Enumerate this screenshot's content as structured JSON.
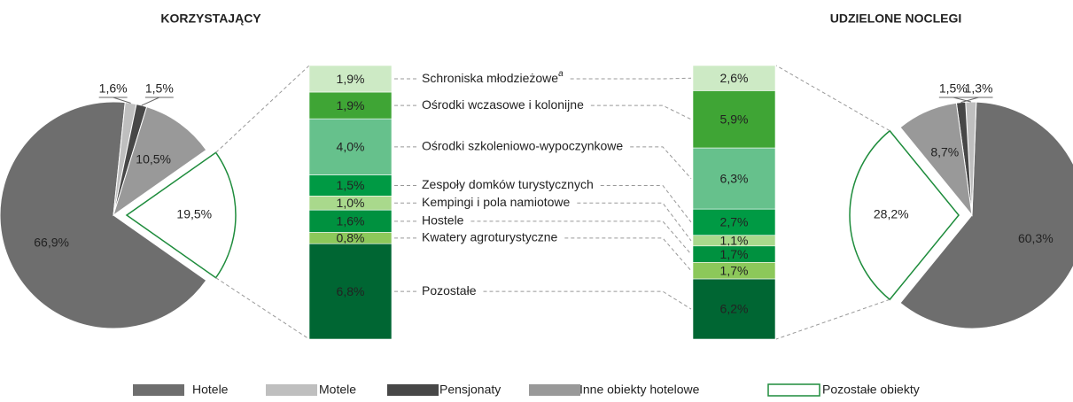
{
  "chart_data": {
    "type": "bar-of-pie",
    "legend": [
      "Hotele",
      "Motele",
      "Pensjonaty",
      "Inne obiekty hotelowe",
      "Pozostałe obiekty"
    ],
    "pie_colors": [
      "#6e6e6e",
      "#bfbfbf",
      "#474747",
      "#999999",
      "#ffffff"
    ],
    "outline_color": "#1e8c3c",
    "bar_categories": [
      "Schroniska młodzieżowe",
      "Ośrodki wczasowe i kolonijne",
      "Ośrodki szkoleniowo-wypoczynkowe",
      "Zespoły domków turystycznych",
      "Kempingi i pola namiotowe",
      "Hostele",
      "Kwatery agroturystyczne",
      "Pozostałe"
    ],
    "bar_category_notes": [
      "a",
      null,
      null,
      null,
      null,
      null,
      null,
      null
    ],
    "bar_colors": [
      "#cdeac5",
      "#3fa535",
      "#66c18c",
      "#009a44",
      "#a9d98c",
      "#00913f",
      "#8cc85a",
      "#006633"
    ],
    "panels": [
      {
        "title": "KORZYSTAJĄCY",
        "pie_values": [
          66.9,
          1.6,
          1.5,
          10.5,
          19.5
        ],
        "pie_labels": [
          "66,9%",
          "1,6%",
          "1,5%",
          "10,5%",
          "19,5%"
        ],
        "bar_values": [
          1.9,
          1.9,
          4.0,
          1.5,
          1.0,
          1.6,
          0.8,
          6.8
        ],
        "bar_labels": [
          "1,9%",
          "1,9%",
          "4,0%",
          "1,5%",
          "1,0%",
          "1,6%",
          "0,8%",
          "6,8%"
        ]
      },
      {
        "title": "UDZIELONE NOCLEGI",
        "pie_values": [
          60.3,
          1.5,
          1.3,
          8.7,
          28.2
        ],
        "pie_labels": [
          "60,3%",
          "1,5%",
          "1,3%",
          "8,7%",
          "28,2%"
        ],
        "bar_values": [
          2.6,
          5.9,
          6.3,
          2.7,
          1.1,
          1.7,
          1.7,
          6.2
        ],
        "bar_labels": [
          "2,6%",
          "5,9%",
          "6,3%",
          "2,7%",
          "1,1%",
          "1,7%",
          "1,7%",
          "6,2%"
        ]
      }
    ]
  }
}
